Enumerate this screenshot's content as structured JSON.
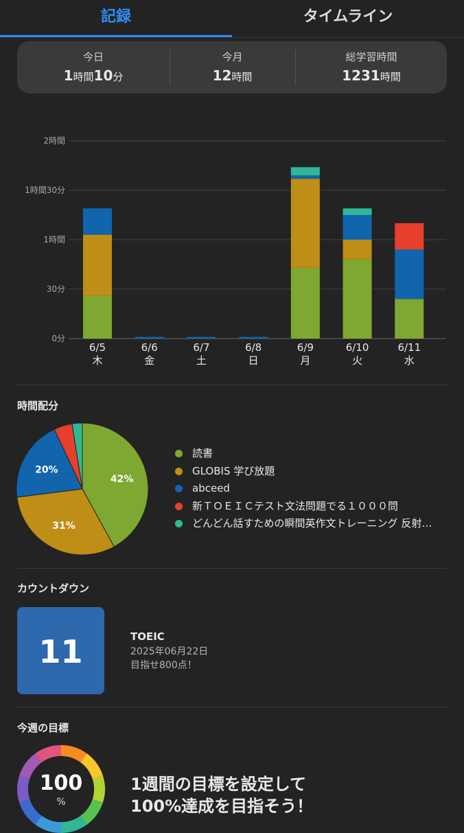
{
  "tabs": {
    "records": "記録",
    "timeline": "タイムライン"
  },
  "summary": {
    "today": {
      "label": "今日",
      "h": "1",
      "h_unit": "時間",
      "m": "10",
      "m_unit": "分"
    },
    "month": {
      "label": "今月",
      "h": "12",
      "h_unit": "時間"
    },
    "total": {
      "label": "総学習時間",
      "h": "1231",
      "h_unit": "時間"
    }
  },
  "chart_data": [
    {
      "type": "bar",
      "stacked": true,
      "categories": [
        "6/5",
        "6/6",
        "6/7",
        "6/8",
        "6/9",
        "6/10",
        "6/11"
      ],
      "weekdays": [
        "木",
        "金",
        "土",
        "日",
        "月",
        "火",
        "水"
      ],
      "y_ticks": [
        {
          "value": 0,
          "label": "0分"
        },
        {
          "value": 30,
          "label": "30分"
        },
        {
          "value": 60,
          "label": "1時間"
        },
        {
          "value": 90,
          "label": "1時間30分"
        },
        {
          "value": 120,
          "label": "2時間"
        }
      ],
      "ylim": [
        0,
        120
      ],
      "grid": true,
      "series": [
        {
          "name": "読書",
          "color": "#7ea832",
          "values": [
            26,
            0,
            0,
            0,
            43,
            48,
            24
          ]
        },
        {
          "name": "GLOBIS 学び放題",
          "color": "#be8e16",
          "values": [
            37,
            0,
            0,
            0,
            54,
            12,
            0
          ]
        },
        {
          "name": "abceed",
          "color": "#1165ad",
          "values": [
            16,
            1,
            1,
            1,
            2,
            15,
            30
          ]
        },
        {
          "name": "新ＴＯＥＩＣテスト文法問題でる１０００問",
          "color": "#e6402c",
          "values": [
            0,
            0,
            0,
            0,
            0,
            0,
            16
          ]
        },
        {
          "name": "どんどん話すための瞬間英作文トレーニング 反射…",
          "color": "#2fb796",
          "values": [
            0,
            0,
            0,
            0,
            5,
            4,
            0
          ]
        }
      ]
    },
    {
      "type": "pie",
      "title": "時間配分",
      "slices": [
        {
          "name": "読書",
          "value": 42,
          "label": "42%",
          "color": "#7ea832"
        },
        {
          "name": "GLOBIS 学び放題",
          "value": 31,
          "label": "31%",
          "color": "#be8e16"
        },
        {
          "name": "abceed",
          "value": 20,
          "label": "20%",
          "color": "#1165ad"
        },
        {
          "name": "新ＴＯＥＩＣテスト文法問題でる１０００問",
          "value": 4.5,
          "label": "",
          "color": "#e6402c"
        },
        {
          "name": "どんどん話すための瞬間英作文トレーニング 反射…",
          "value": 2.5,
          "label": "",
          "color": "#2fb796"
        }
      ]
    }
  ],
  "distribution": {
    "title": "時間配分"
  },
  "countdown": {
    "title": "カウントダウン",
    "days": "11",
    "exam": "TOEIC",
    "date": "2025年06月22日",
    "note": "目指せ800点！"
  },
  "weekly_goal": {
    "title": "今週の目標",
    "percent": "100",
    "unit": "%",
    "line1": "1週間の目標を設定して",
    "line2": "100%達成を目指そう！",
    "ring_colors": [
      "#f68c1f",
      "#f8c62d",
      "#b3d334",
      "#58c24f",
      "#2fb796",
      "#3a9ad9",
      "#3a6ccf",
      "#7a5bc9",
      "#a15bb5",
      "#e0557c"
    ]
  }
}
